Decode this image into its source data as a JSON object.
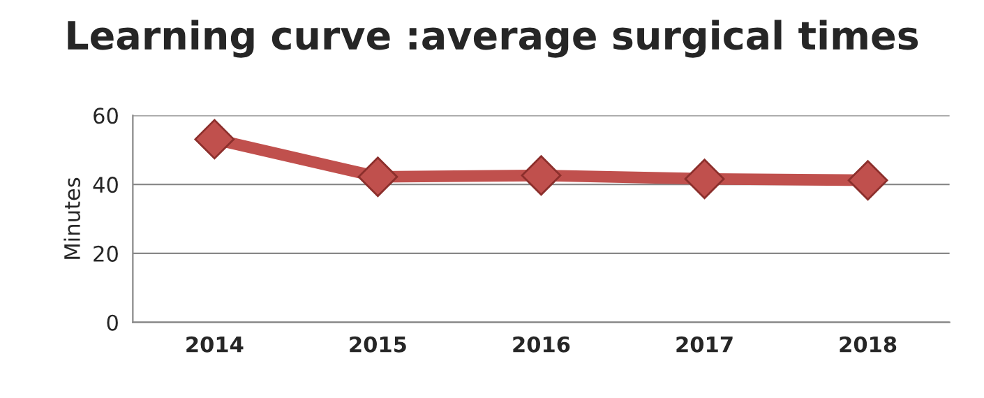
{
  "chart_data": {
    "type": "line",
    "title": "Learning curve :average surgical times",
    "ylabel": "Minutes",
    "categories": [
      "2014",
      "2015",
      "2016",
      "2017",
      "2018"
    ],
    "series": [
      {
        "color": "#c0504d",
        "values": [
          53.1,
          42.2,
          42.6,
          41.6,
          41.2
        ]
      }
    ],
    "ylim": [
      0,
      60
    ],
    "yticks": [
      0,
      20,
      40,
      60
    ],
    "grid": "y",
    "marker": "diamond",
    "line_style": "solid",
    "legend": false
  }
}
